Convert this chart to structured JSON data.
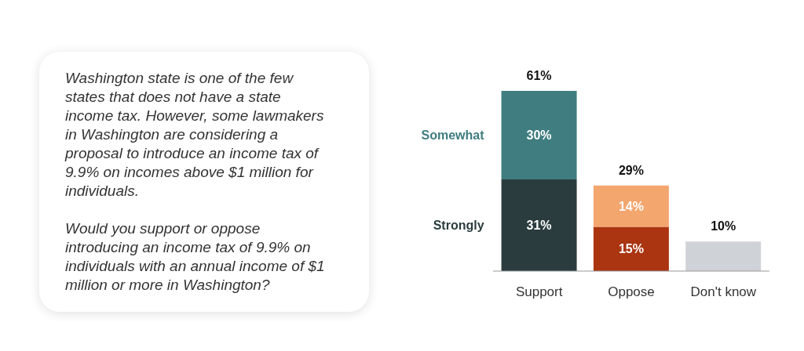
{
  "chart_data": {
    "type": "bar",
    "stacked": true,
    "categories": [
      "Support",
      "Oppose",
      "Don't know"
    ],
    "series": [
      {
        "name": "Strongly",
        "color": "#2b3c3e",
        "colors": [
          "#2b3c3e",
          "#aa3510",
          "#cfd3d8"
        ],
        "values": [
          31,
          15,
          10
        ],
        "value_labels": [
          "31%",
          "15%",
          null
        ]
      },
      {
        "name": "Somewhat",
        "color": "#3f7d80",
        "colors": [
          "#3f7d80",
          "#f4a66f",
          null
        ],
        "values": [
          30,
          14,
          null
        ],
        "value_labels": [
          "30%",
          "14%",
          null
        ]
      }
    ],
    "totals": [
      "61%",
      "29%",
      "10%"
    ],
    "annotations": [
      "Washington state is one of the few states that does not have a state income tax. However, some lawmakers in Washington are considering a proposal to introduce an income tax of 9.9% on incomes above $1 million for individuals.",
      "Would you support or oppose introducing an income tax of 9.9% on individuals with an annual income of $1 million or more in Washington?"
    ]
  }
}
